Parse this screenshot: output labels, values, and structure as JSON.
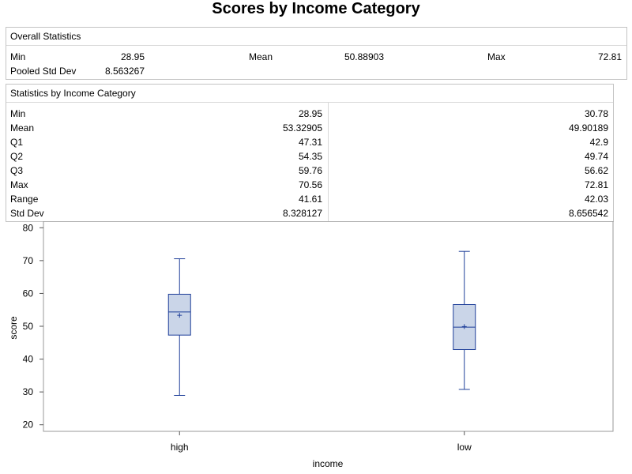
{
  "title": "Scores by Income Category",
  "overall": {
    "header": "Overall Statistics",
    "min_label": "Min",
    "min_value": "28.95",
    "mean_label": "Mean",
    "mean_value": "50.88903",
    "max_label": "Max",
    "max_value": "72.81",
    "psd_label": "Pooled Std Dev",
    "psd_value": "8.563267"
  },
  "by_category": {
    "header": "Statistics by Income Category",
    "rows": [
      {
        "label": "Min",
        "high": "28.95",
        "low": "30.78"
      },
      {
        "label": "Mean",
        "high": "53.32905",
        "low": "49.90189"
      },
      {
        "label": "Q1",
        "high": "47.31",
        "low": "42.9"
      },
      {
        "label": "Q2",
        "high": "54.35",
        "low": "49.74"
      },
      {
        "label": "Q3",
        "high": "59.76",
        "low": "56.62"
      },
      {
        "label": "Max",
        "high": "70.56",
        "low": "72.81"
      },
      {
        "label": "Range",
        "high": "41.61",
        "low": "42.03"
      },
      {
        "label": "Std Dev",
        "high": "8.328127",
        "low": "8.656542"
      }
    ]
  },
  "chart_data": {
    "type": "box",
    "xlabel": "income",
    "ylabel": "score",
    "categories": [
      "high",
      "low"
    ],
    "ylim": [
      18,
      82
    ],
    "yticks": [
      20,
      30,
      40,
      50,
      60,
      70,
      80
    ],
    "boxes": [
      {
        "category": "high",
        "min": 28.95,
        "q1": 47.31,
        "median": 54.35,
        "q3": 59.76,
        "max": 70.56,
        "mean": 53.32905
      },
      {
        "category": "low",
        "min": 30.78,
        "q1": 42.9,
        "median": 49.74,
        "q3": 56.62,
        "max": 72.81,
        "mean": 49.90189
      }
    ],
    "colors": {
      "box_fill": "#cad5e8",
      "box_stroke": "#1f3f99",
      "frame": "#9a9a9a"
    }
  }
}
